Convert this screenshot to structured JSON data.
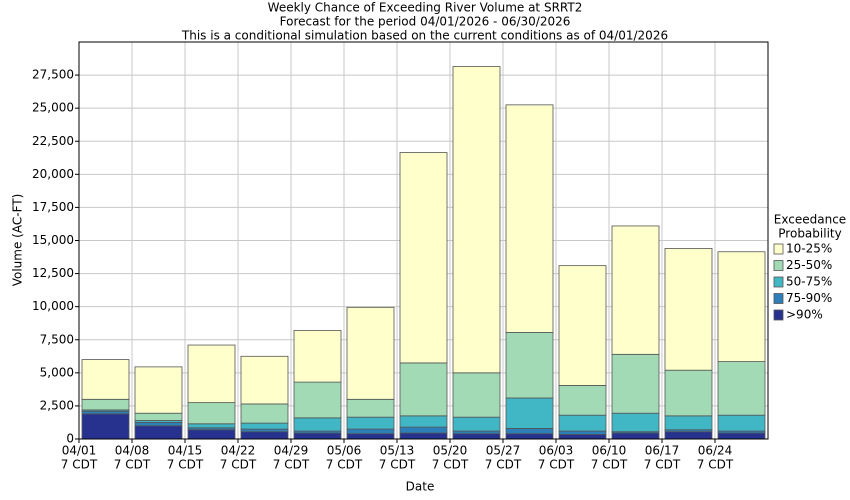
{
  "chart_data": {
    "type": "stacked_bar",
    "title": [
      "Weekly Chance of Exceeding River Volume at SRRT2",
      "Forecast for the period 04/01/2026 - 06/30/2026",
      "This is a conditional simulation based on the current conditions as of 04/01/2026"
    ],
    "x_label": "Date",
    "y_label": "Volume (AC-FT)",
    "categories": [
      "04/01",
      "04/08",
      "04/15",
      "04/22",
      "04/29",
      "05/06",
      "05/13",
      "05/20",
      "05/27",
      "06/03",
      "06/10",
      "06/17",
      "06/24"
    ],
    "category_sublabel": "7 CDT",
    "legend_title": [
      "Exceedance",
      "Probability"
    ],
    "series": [
      {
        "name": ">90%",
        "color": "#27328f",
        "values": [
          1900,
          1000,
          700,
          550,
          450,
          400,
          450,
          400,
          400,
          350,
          450,
          550,
          450
        ]
      },
      {
        "name": "75-90%",
        "color": "#2c7fb8",
        "values": [
          200,
          250,
          150,
          200,
          150,
          350,
          450,
          200,
          400,
          250,
          100,
          150,
          150
        ]
      },
      {
        "name": "50-75%",
        "color": "#41b6c4",
        "values": [
          100,
          150,
          300,
          450,
          1000,
          900,
          850,
          1050,
          2300,
          1200,
          1400,
          1050,
          1200
        ]
      },
      {
        "name": "25-50%",
        "color": "#a1dab4",
        "values": [
          800,
          550,
          1600,
          1450,
          2700,
          1350,
          4000,
          3350,
          4950,
          2250,
          4450,
          3450,
          4050
        ]
      },
      {
        "name": "10-25%",
        "color": "#ffffcc",
        "values": [
          3000,
          3500,
          4350,
          3600,
          3900,
          6950,
          15900,
          23150,
          17200,
          9050,
          9700,
          9200,
          8300
        ]
      }
    ],
    "ylim": [
      0,
      30000
    ],
    "yticks": [
      0,
      {
        "value": 2500,
        "label": "2,500"
      },
      {
        "value": 5000,
        "label": "5,000"
      },
      {
        "value": 7500,
        "label": "7,500"
      },
      {
        "value": 10000,
        "label": "10,000"
      },
      {
        "value": 12500,
        "label": "12,500"
      },
      {
        "value": 15000,
        "label": "15,000"
      },
      {
        "value": 17500,
        "label": "17,500"
      },
      {
        "value": 20000,
        "label": "20,000"
      },
      {
        "value": 22500,
        "label": "22,500"
      },
      {
        "value": 25000,
        "label": "25,000"
      },
      {
        "value": 27500,
        "label": "27,500"
      }
    ],
    "grid": true
  }
}
